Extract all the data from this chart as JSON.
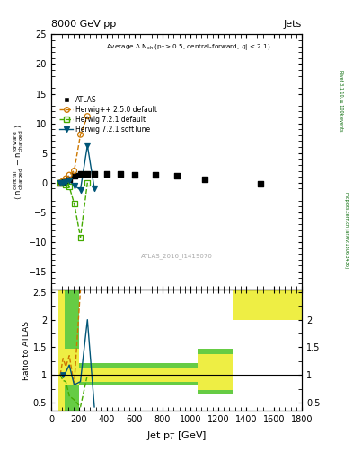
{
  "title_top": "8000 GeV pp",
  "title_right": "Jets",
  "annotation": "ATLAS_2016_I1419070",
  "right_label_top": "Rivet 3.1.10, ≥ 100k events",
  "right_label_bot": "mcplots.cern.ch [arXiv:1306.3436]",
  "ylabel_ratio": "Ratio to ATLAS",
  "xlabel": "Jet p$_{T}$ [GeV]",
  "inner_title": "Average Δ N$_{ch}$ (p$_{T}$>0.5, central-forward, η| < 2.1)",
  "ylim_main": [
    -18,
    25
  ],
  "ylim_ratio": [
    0.35,
    2.55
  ],
  "xlim": [
    0,
    1800
  ],
  "atlas_x": [
    65,
    85,
    105,
    130,
    165,
    210,
    260,
    310,
    400,
    500,
    600,
    750,
    900,
    1100,
    1500
  ],
  "atlas_y": [
    0.0,
    0.1,
    0.3,
    0.6,
    1.2,
    1.4,
    1.5,
    1.5,
    1.5,
    1.4,
    1.3,
    1.3,
    1.1,
    0.5,
    -0.2
  ],
  "herwig_pp_x": [
    65,
    85,
    105,
    130,
    165,
    210,
    260
  ],
  "herwig_pp_y": [
    0.0,
    0.3,
    0.7,
    1.3,
    2.0,
    8.1,
    11.2
  ],
  "herwig721_x": [
    65,
    85,
    105,
    130,
    165,
    210,
    260
  ],
  "herwig721_y": [
    0.0,
    -0.1,
    -0.3,
    -0.7,
    -3.5,
    -9.2,
    0.0
  ],
  "herwig721st_x": [
    65,
    85,
    105,
    130,
    165,
    210,
    260,
    310
  ],
  "herwig721st_y": [
    0.0,
    0.0,
    0.1,
    0.4,
    -0.5,
    -1.2,
    6.3,
    -1.0
  ],
  "color_atlas": "#000000",
  "color_herwig_pp": "#cc7700",
  "color_herwig721": "#44aa00",
  "color_herwig721st": "#005577",
  "color_green_band": "#66cc44",
  "color_yellow_band": "#eeee44",
  "background": "#ffffff",
  "band_edges": [
    50,
    100,
    200,
    300,
    400,
    500,
    600,
    700,
    800,
    900,
    1050,
    1200,
    1300,
    1600,
    1800
  ],
  "green_lo": [
    0.35,
    0.35,
    0.82,
    0.82,
    0.82,
    0.82,
    0.82,
    0.82,
    0.82,
    0.82,
    0.65,
    0.65,
    2.0,
    2.0,
    2.0
  ],
  "green_hi": [
    2.55,
    2.55,
    1.22,
    1.22,
    1.22,
    1.22,
    1.22,
    1.22,
    1.22,
    1.22,
    1.48,
    1.48,
    2.55,
    2.55,
    2.55
  ],
  "yellow_lo": [
    0.35,
    0.82,
    0.88,
    0.88,
    0.88,
    0.88,
    0.88,
    0.88,
    0.88,
    0.88,
    0.72,
    0.72,
    2.0,
    2.0,
    2.0
  ],
  "yellow_hi": [
    2.55,
    1.48,
    1.14,
    1.14,
    1.14,
    1.14,
    1.14,
    1.14,
    1.14,
    1.14,
    1.38,
    1.38,
    2.55,
    2.55,
    2.55
  ],
  "ratio_herwig_pp_x": [
    65,
    85,
    105,
    130,
    165,
    210,
    260
  ],
  "ratio_herwig_pp_y": [
    1.0,
    1.3,
    1.15,
    1.35,
    0.82,
    2.55,
    2.55
  ],
  "ratio_herwig721_x": [
    65,
    85,
    105,
    130,
    165,
    210,
    260
  ],
  "ratio_herwig721_y": [
    1.0,
    0.9,
    0.88,
    0.62,
    0.55,
    0.42,
    1.0
  ],
  "ratio_herwig721st_x": [
    65,
    85,
    105,
    130,
    165,
    210,
    260,
    310
  ],
  "ratio_herwig721st_y": [
    1.0,
    1.0,
    1.05,
    1.18,
    0.82,
    0.88,
    2.0,
    0.42
  ]
}
